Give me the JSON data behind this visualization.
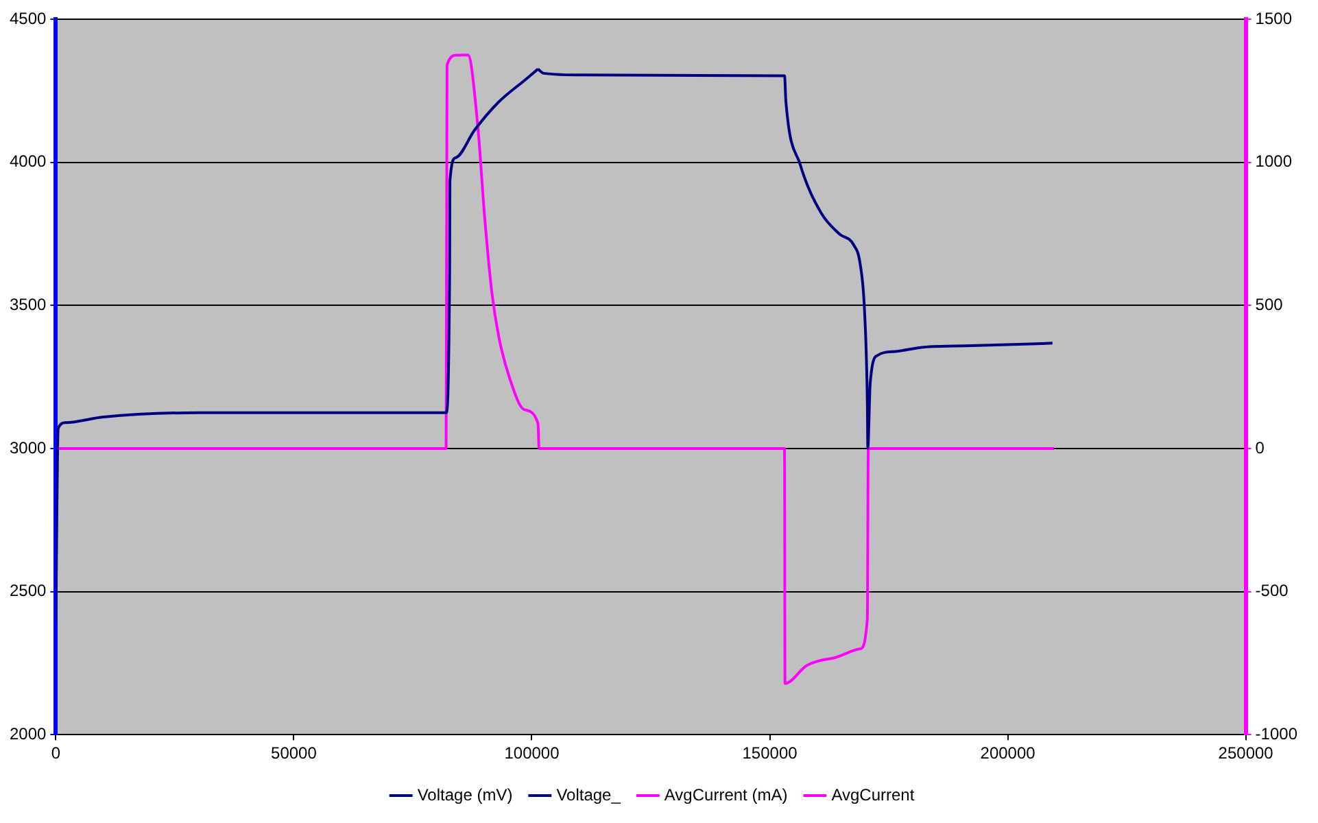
{
  "chart_data": {
    "type": "line",
    "legend": "bottom",
    "grid": "y",
    "marker": "none",
    "line_style": "solid",
    "xlim": [
      0,
      250000
    ],
    "xticks": [
      0,
      50000,
      100000,
      150000,
      200000,
      250000
    ],
    "ylim": [
      2000,
      4500
    ],
    "yticks": [
      2000,
      2500,
      3000,
      3500,
      4000,
      4500
    ],
    "y2lim": [
      -1000,
      1500
    ],
    "y2ticks": [
      -1000,
      -500,
      0,
      500,
      1000,
      1500
    ],
    "series": [
      {
        "name": "Voltage (mV)",
        "color": "#000080",
        "x": [
          0,
          500,
          2000,
          10000,
          30000,
          82000,
          82750,
          82800,
          84000,
          88000,
          93000,
          98900,
          101300
        ],
        "values": [
          2400,
          3070,
          3090,
          3110,
          3125,
          3125,
          3630,
          3934,
          4016,
          4113,
          4210,
          4292,
          4326
        ]
      },
      {
        "name": "Voltage_",
        "color": "#000080",
        "x": [
          101300,
          102500,
          110700,
          153100,
          153400,
          156400,
          160800,
          164600,
          167600,
          169000,
          169900,
          170500,
          170600,
          171100,
          172600,
          176400,
          182300,
          192300,
          209400
        ],
        "values": [
          4326,
          4311,
          4305,
          4302,
          4210,
          3992,
          3823,
          3750,
          3712,
          3644,
          3484,
          3160,
          3001,
          3228,
          3325,
          3339,
          3354,
          3359,
          3368
        ]
      },
      {
        "name": "AvgCurrent (mA)",
        "color": "#ff00ff",
        "axis": "y2",
        "x": [
          200,
          82000,
          82200,
          84200,
          86600,
          88650,
          90100,
          91600,
          93100,
          95400,
          98400,
          101300,
          101500
        ],
        "values": [
          0,
          0,
          1340,
          1374,
          1375,
          1128,
          808,
          547,
          388,
          243,
          136,
          88,
          0
        ]
      },
      {
        "name": "AvgCurrent",
        "color": "#ff00ff",
        "axis": "y2",
        "x": [
          101500,
          153100,
          153200,
          157800,
          162800,
          169000,
          170500,
          170700,
          209700
        ],
        "values": [
          0,
          0,
          -821,
          -758,
          -734,
          -700,
          -594,
          0,
          0
        ]
      }
    ]
  }
}
